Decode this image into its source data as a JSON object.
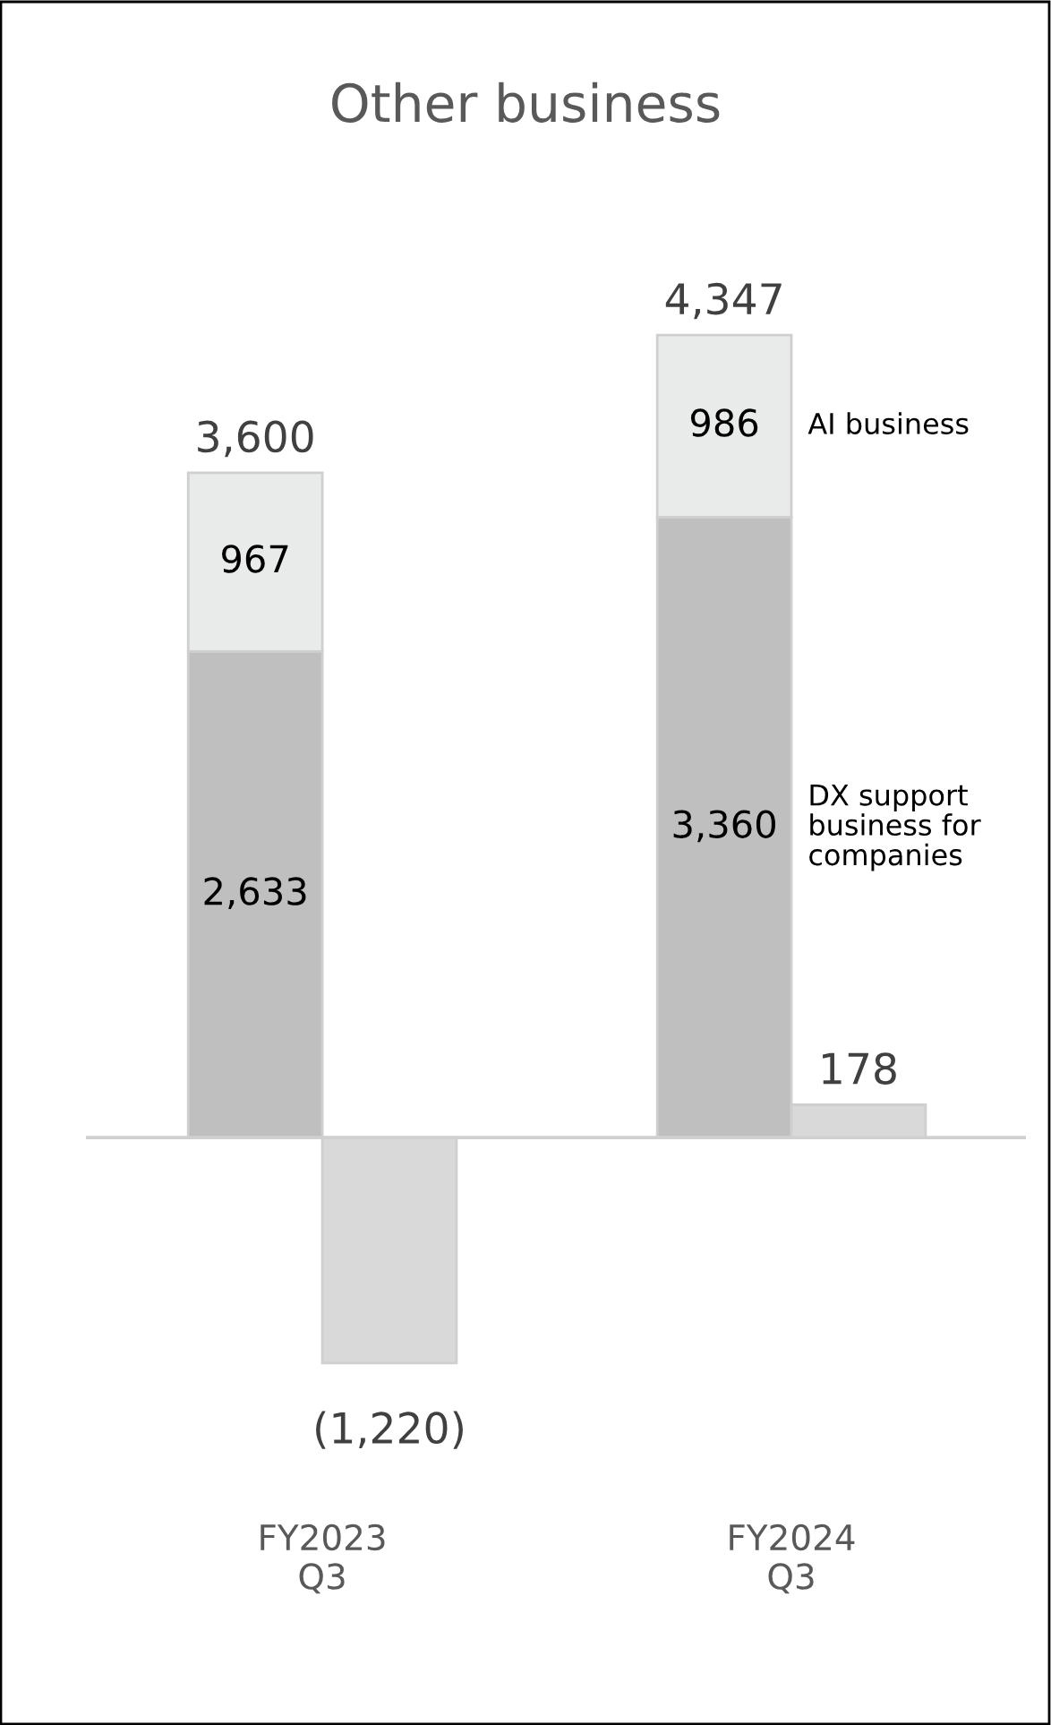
{
  "chart_data": [
    {
      "type": "bar",
      "title": "Other business",
      "categories": [
        "FY2023\nQ3",
        "FY2024\nQ3"
      ],
      "stacked": true,
      "series": [
        {
          "name": "DX support business for companies",
          "color": "#bfbfbf",
          "values": [
            2633,
            3360
          ],
          "value_labels": [
            "2,633",
            "3,360"
          ]
        },
        {
          "name": "AI business",
          "color": "#e8ebea",
          "values": [
            967,
            986
          ],
          "value_labels": [
            "967",
            "986"
          ]
        }
      ],
      "totals": [
        "3,600",
        "4,347"
      ],
      "grid": false,
      "legend": false
    },
    {
      "type": "bar",
      "categories": [
        null,
        null
      ],
      "series": [
        {
          "color": "#d9d9d9",
          "values": [
            -1220,
            178
          ],
          "value_labels": [
            "(1,220)",
            "178"
          ]
        }
      ]
    }
  ]
}
